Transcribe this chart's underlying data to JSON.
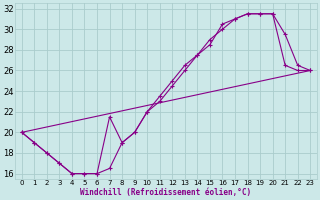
{
  "xlabel": "Windchill (Refroidissement éolien,°C)",
  "bg_color": "#cce8e8",
  "line_color": "#880088",
  "grid_color": "#aacccc",
  "xlim": [
    -0.5,
    23.5
  ],
  "ylim": [
    15.5,
    32.5
  ],
  "xticks": [
    0,
    1,
    2,
    3,
    4,
    5,
    6,
    7,
    8,
    9,
    10,
    11,
    12,
    13,
    14,
    15,
    16,
    17,
    18,
    19,
    20,
    21,
    22,
    23
  ],
  "yticks": [
    16,
    18,
    20,
    22,
    24,
    26,
    28,
    30,
    32
  ],
  "line1_x": [
    0,
    1,
    2,
    3,
    4,
    5,
    6,
    7,
    8,
    9,
    10,
    11,
    12,
    13,
    14,
    15,
    16,
    17,
    18,
    19,
    20,
    21,
    22,
    23
  ],
  "line1_y": [
    20.0,
    19.0,
    18.0,
    17.0,
    16.0,
    16.0,
    16.0,
    16.5,
    19.0,
    20.0,
    22.0,
    23.0,
    24.5,
    26.0,
    27.5,
    28.5,
    30.5,
    31.0,
    31.5,
    31.5,
    31.5,
    29.5,
    26.5,
    26.0
  ],
  "line2_x": [
    0,
    1,
    2,
    3,
    4,
    5,
    6,
    7,
    8,
    9,
    10,
    11,
    12,
    13,
    14,
    15,
    16,
    17,
    18,
    19,
    20,
    21,
    22,
    23
  ],
  "line2_y": [
    20.0,
    19.0,
    18.0,
    17.0,
    16.0,
    16.0,
    16.0,
    21.5,
    19.0,
    20.0,
    22.0,
    23.5,
    25.0,
    26.5,
    27.5,
    29.0,
    30.0,
    31.0,
    31.5,
    31.5,
    31.5,
    26.5,
    26.0,
    26.0
  ],
  "line3_x": [
    0,
    23
  ],
  "line3_y": [
    20.0,
    26.0
  ]
}
